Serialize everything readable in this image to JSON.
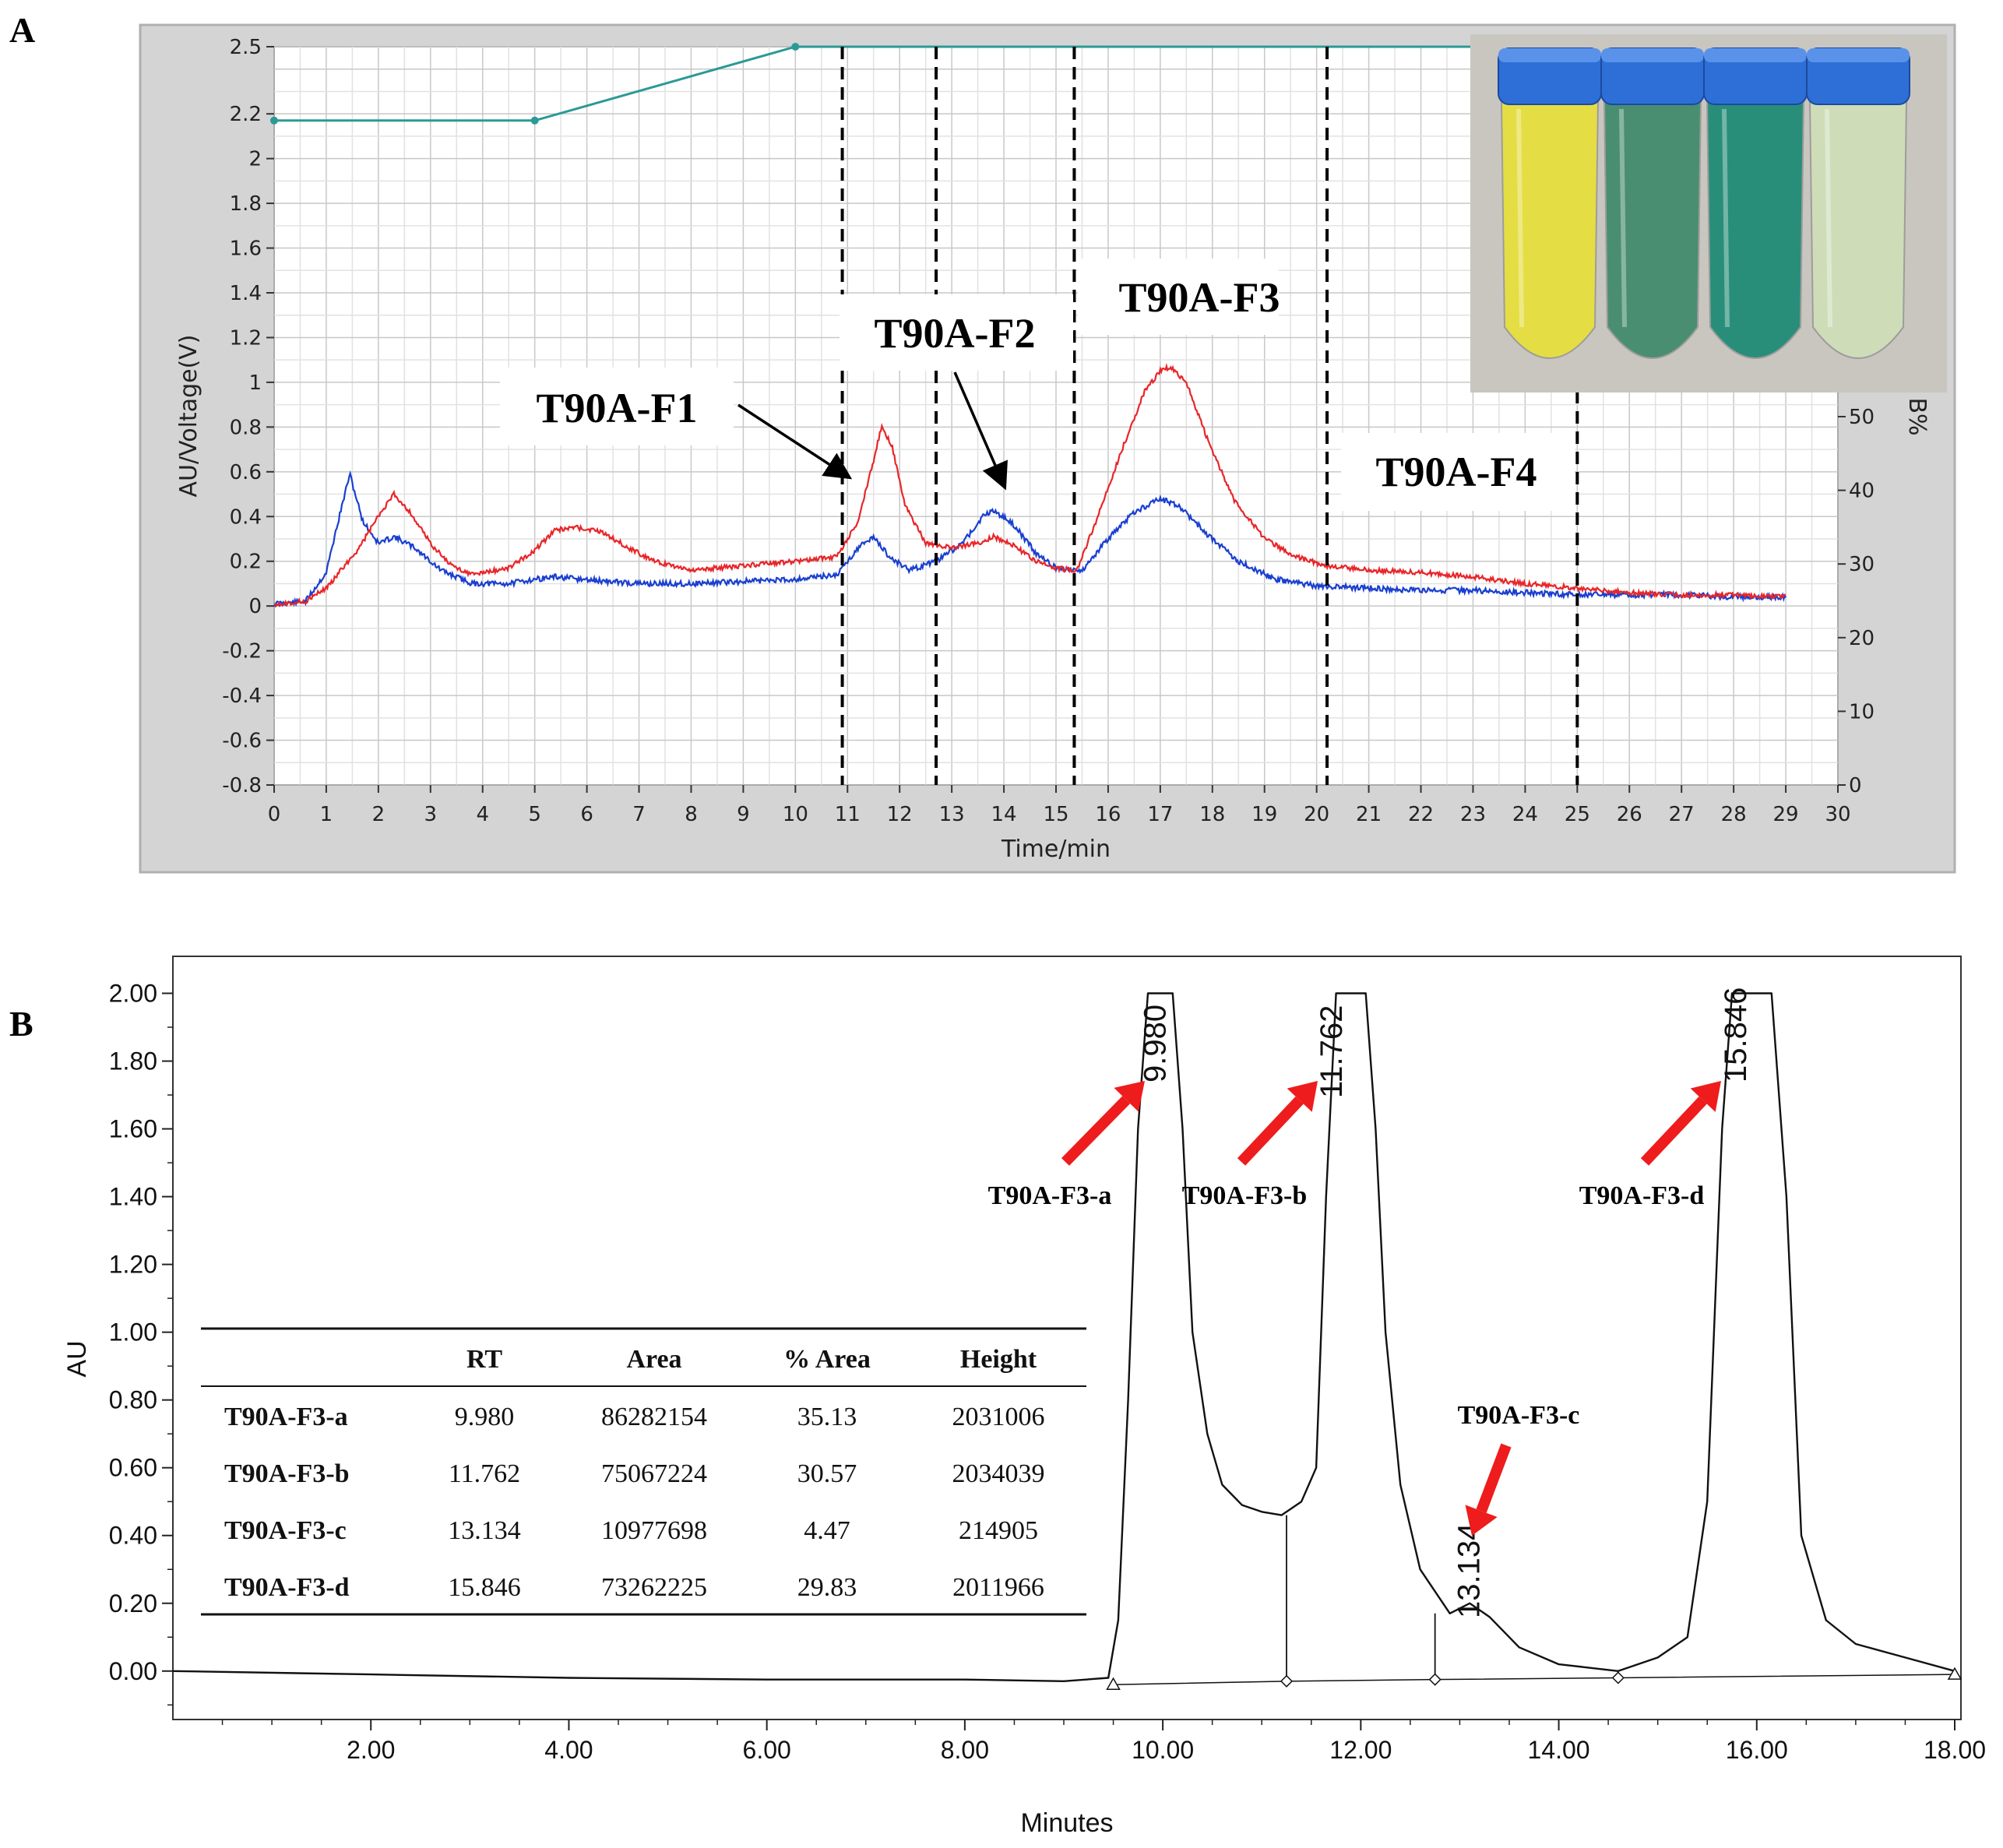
{
  "figure": {
    "panel_a_letter": "A",
    "panel_b_letter": "B"
  },
  "chart_data": [
    {
      "id": "A",
      "type": "line",
      "xlabel": "Time/min",
      "ylabel": "AU/Voltage(V)",
      "ylabel_right": "B%",
      "xlim": [
        0,
        30
      ],
      "ylim": [
        -0.8,
        2.5
      ],
      "ylim_right": [
        0,
        100
      ],
      "x_ticks": [
        0,
        1,
        2,
        3,
        4,
        5,
        6,
        7,
        8,
        9,
        10,
        11,
        12,
        13,
        14,
        15,
        16,
        17,
        18,
        19,
        20,
        21,
        22,
        23,
        24,
        25,
        26,
        27,
        28,
        29,
        30
      ],
      "y_ticks": [
        "2.5",
        "2.2",
        "2",
        "1.8",
        "1.6",
        "1.4",
        "1.2",
        "1",
        "0.8",
        "0.6",
        "0.4",
        "0.2",
        "0",
        "-0.2",
        "-0.4",
        "-0.6",
        "-0.8"
      ],
      "y_tick_values": [
        2.5,
        2.2,
        2,
        1.8,
        1.6,
        1.4,
        1.2,
        1,
        0.8,
        0.6,
        0.4,
        0.2,
        0,
        -0.2,
        -0.4,
        -0.6,
        -0.8
      ],
      "y_ticks_right": [
        "50",
        "40",
        "30",
        "20",
        "10",
        "0"
      ],
      "y_ticks_right_values": [
        50,
        40,
        30,
        20,
        10,
        0
      ],
      "grid": true,
      "colors": {
        "red": "#e8262a",
        "blue": "#1a3fd0",
        "teal": "#2a9a96",
        "frame": "#c8c8c8"
      },
      "gradient": {
        "x": [
          0,
          5,
          10,
          29
        ],
        "y": [
          2.17,
          2.17,
          2.5,
          2.5
        ]
      },
      "red_series": {
        "x": [
          0,
          0.6,
          1.0,
          1.6,
          2.0,
          2.3,
          2.6,
          3.0,
          3.4,
          3.8,
          4.5,
          5.0,
          5.4,
          5.8,
          6.3,
          6.8,
          7.3,
          8.0,
          9.0,
          10.0,
          10.8,
          11.2,
          11.5,
          11.65,
          11.85,
          12.1,
          12.5,
          13.0,
          13.5,
          13.8,
          14.2,
          14.6,
          15.0,
          15.4,
          15.8,
          16.3,
          16.7,
          17.0,
          17.2,
          17.5,
          17.9,
          18.4,
          19.0,
          19.6,
          20.2,
          21.0,
          22.0,
          23.0,
          24.0,
          25.0,
          26.0,
          27.0,
          28.0,
          29.0
        ],
        "y": [
          0.01,
          0.02,
          0.08,
          0.25,
          0.4,
          0.5,
          0.42,
          0.28,
          0.18,
          0.14,
          0.17,
          0.25,
          0.34,
          0.35,
          0.33,
          0.26,
          0.2,
          0.16,
          0.18,
          0.2,
          0.22,
          0.38,
          0.65,
          0.8,
          0.72,
          0.45,
          0.28,
          0.26,
          0.28,
          0.31,
          0.27,
          0.2,
          0.17,
          0.16,
          0.4,
          0.72,
          0.96,
          1.05,
          1.07,
          1.0,
          0.75,
          0.48,
          0.3,
          0.22,
          0.18,
          0.16,
          0.15,
          0.13,
          0.1,
          0.08,
          0.06,
          0.05,
          0.05,
          0.04
        ]
      },
      "blue_series": {
        "x": [
          0,
          0.6,
          1.0,
          1.2,
          1.45,
          1.7,
          2.0,
          2.3,
          2.7,
          3.2,
          3.8,
          4.5,
          5.0,
          5.4,
          5.8,
          6.4,
          7.0,
          8.0,
          9.0,
          10.0,
          10.8,
          11.2,
          11.5,
          11.8,
          12.2,
          12.7,
          13.2,
          13.6,
          13.8,
          14.2,
          14.6,
          15.0,
          15.5,
          16.0,
          16.5,
          17.0,
          17.4,
          17.9,
          18.5,
          19.2,
          20.0,
          21.0,
          22.0,
          23.0,
          24.0,
          25.0,
          26.0,
          27.0,
          28.0,
          29.0
        ],
        "y": [
          0.01,
          0.02,
          0.15,
          0.35,
          0.59,
          0.38,
          0.28,
          0.31,
          0.26,
          0.16,
          0.1,
          0.1,
          0.12,
          0.13,
          0.12,
          0.11,
          0.1,
          0.1,
          0.11,
          0.12,
          0.14,
          0.26,
          0.31,
          0.22,
          0.16,
          0.2,
          0.28,
          0.4,
          0.43,
          0.36,
          0.24,
          0.17,
          0.16,
          0.3,
          0.42,
          0.48,
          0.44,
          0.32,
          0.2,
          0.12,
          0.09,
          0.08,
          0.07,
          0.07,
          0.06,
          0.05,
          0.05,
          0.05,
          0.04,
          0.04
        ]
      },
      "fraction_lines_x": [
        10.9,
        12.7,
        15.35,
        20.2,
        25.0
      ],
      "fraction_labels": [
        {
          "text": "T90A-F1",
          "arrow_to": [
            11.0,
            0.58
          ]
        },
        {
          "text": "T90A-F2",
          "arrow_to": [
            14.0,
            0.54
          ]
        },
        {
          "text": "T90A-F3"
        },
        {
          "text": "T90A-F4"
        }
      ],
      "inset": {
        "tubes": [
          {
            "liquid": "#e8df3a",
            "cap": "#2d6fd6"
          },
          {
            "liquid": "#3f8a6a",
            "cap": "#2d6fd6"
          },
          {
            "liquid": "#1c8a74",
            "cap": "#2d6fd6"
          },
          {
            "liquid": "#cfe0b8",
            "cap": "#2d6fd6"
          }
        ]
      }
    },
    {
      "id": "B",
      "type": "line",
      "xlabel": "Minutes",
      "ylabel": "AU",
      "xlim": [
        0,
        18
      ],
      "ylim": [
        -0.12,
        2.1
      ],
      "x_ticks": [
        "2.00",
        "4.00",
        "6.00",
        "8.00",
        "10.00",
        "12.00",
        "14.00",
        "16.00",
        "18.00"
      ],
      "x_tick_values": [
        2,
        4,
        6,
        8,
        10,
        12,
        14,
        16,
        18
      ],
      "y_ticks": [
        "2.00",
        "1.80",
        "1.60",
        "1.40",
        "1.20",
        "1.00",
        "0.80",
        "0.60",
        "0.40",
        "0.20",
        "0.00"
      ],
      "y_tick_values": [
        2.0,
        1.8,
        1.6,
        1.4,
        1.2,
        1.0,
        0.8,
        0.6,
        0.4,
        0.2,
        0.0
      ],
      "grid": false,
      "trace": {
        "x": [
          0,
          2,
          4,
          6,
          8,
          9.0,
          9.45,
          9.55,
          9.65,
          9.75,
          9.85,
          9.95,
          10.1,
          10.2,
          10.3,
          10.45,
          10.6,
          10.8,
          11.0,
          11.2,
          11.4,
          11.55,
          11.65,
          11.75,
          11.85,
          12.05,
          12.15,
          12.25,
          12.4,
          12.6,
          12.9,
          13.1,
          13.3,
          13.6,
          14.0,
          14.3,
          14.6,
          15.0,
          15.3,
          15.5,
          15.65,
          15.75,
          15.85,
          16.15,
          16.3,
          16.45,
          16.7,
          17.0,
          17.5,
          18.0
        ],
        "y": [
          0.0,
          -0.01,
          -0.02,
          -0.025,
          -0.025,
          -0.03,
          -0.02,
          0.15,
          0.8,
          1.6,
          2.0,
          2.0,
          2.0,
          1.6,
          1.0,
          0.7,
          0.55,
          0.49,
          0.47,
          0.46,
          0.5,
          0.6,
          1.4,
          2.0,
          2.0,
          2.0,
          1.6,
          1.0,
          0.55,
          0.3,
          0.17,
          0.2,
          0.16,
          0.07,
          0.02,
          0.01,
          0.0,
          0.04,
          0.1,
          0.5,
          1.6,
          2.0,
          2.0,
          2.0,
          1.4,
          0.4,
          0.15,
          0.08,
          0.04,
          0.0
        ]
      },
      "baseline": {
        "x": [
          9.5,
          11.25,
          12.75,
          14.6,
          18.0
        ],
        "y": [
          -0.04,
          -0.03,
          -0.025,
          -0.02,
          -0.01
        ]
      },
      "drops": [
        {
          "x": 11.25,
          "y": 0.46,
          "mark": "diamond"
        },
        {
          "x": 12.75,
          "y": 0.17,
          "mark": "diamond"
        },
        {
          "x": 14.6,
          "y": 0.0,
          "mark": "diamond"
        }
      ],
      "end_marks": [
        {
          "x": 9.5,
          "mark": "triangle"
        },
        {
          "x": 18.0,
          "mark": "triangle"
        }
      ],
      "peaks": [
        {
          "rt": "9.980",
          "label": "T90A-F3-a",
          "x": 9.98,
          "top": 2.0
        },
        {
          "rt": "11.762",
          "label": "T90A-F3-b",
          "x": 11.762,
          "top": 2.0
        },
        {
          "rt": "13.134",
          "label": "T90A-F3-c",
          "x": 13.134,
          "top": 0.2
        },
        {
          "rt": "15.846",
          "label": "T90A-F3-d",
          "x": 15.846,
          "top": 2.0
        }
      ],
      "arrow_color": "#ee1c1c",
      "table": {
        "headers": [
          "",
          "RT",
          "Area",
          "% Area",
          "Height"
        ],
        "rows": [
          [
            "T90A-F3-a",
            "9.980",
            "86282154",
            "35.13",
            "2031006"
          ],
          [
            "T90A-F3-b",
            "11.762",
            "75067224",
            "30.57",
            "2034039"
          ],
          [
            "T90A-F3-c",
            "13.134",
            "10977698",
            "4.47",
            "214905"
          ],
          [
            "T90A-F3-d",
            "15.846",
            "73262225",
            "29.83",
            "2011966"
          ]
        ]
      }
    }
  ]
}
